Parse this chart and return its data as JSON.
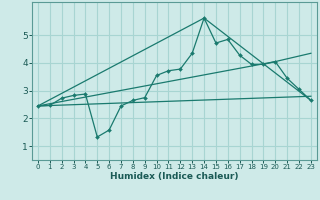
{
  "xlabel": "Humidex (Indice chaleur)",
  "background_color": "#ceeae8",
  "grid_color": "#a8d5d2",
  "line_color": "#1a7a6e",
  "xlim": [
    -0.5,
    23.5
  ],
  "ylim": [
    0.5,
    6.2
  ],
  "yticks": [
    1,
    2,
    3,
    4,
    5
  ],
  "xticks": [
    0,
    1,
    2,
    3,
    4,
    5,
    6,
    7,
    8,
    9,
    10,
    11,
    12,
    13,
    14,
    15,
    16,
    17,
    18,
    19,
    20,
    21,
    22,
    23
  ],
  "series1_x": [
    0,
    1,
    2,
    3,
    4,
    5,
    6,
    7,
    8,
    9,
    10,
    11,
    12,
    13,
    14,
    15,
    16,
    17,
    18,
    19,
    20,
    21,
    22,
    23
  ],
  "series1_y": [
    2.45,
    2.47,
    2.73,
    2.83,
    2.88,
    1.33,
    1.58,
    2.45,
    2.65,
    2.75,
    3.55,
    3.72,
    3.78,
    4.35,
    5.62,
    4.72,
    4.85,
    4.28,
    3.95,
    3.95,
    4.05,
    3.45,
    3.05,
    2.65
  ],
  "series2_x": [
    0,
    23
  ],
  "series2_y": [
    2.45,
    2.8
  ],
  "series3_x": [
    0,
    14,
    23
  ],
  "series3_y": [
    2.45,
    5.62,
    2.65
  ],
  "series4_x": [
    0,
    20,
    23
  ],
  "series4_y": [
    2.45,
    4.05,
    4.35
  ]
}
